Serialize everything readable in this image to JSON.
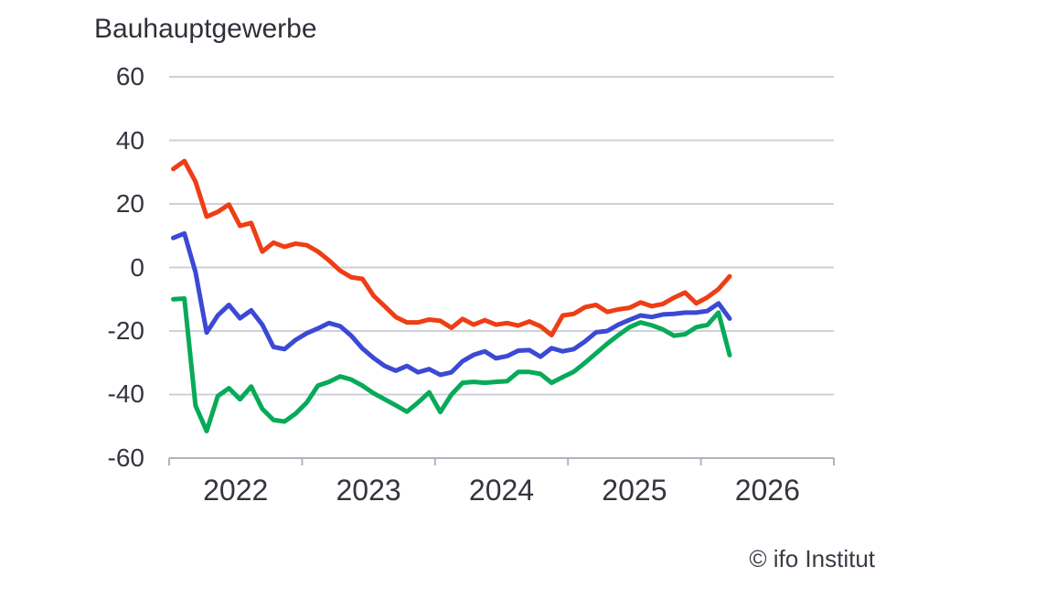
{
  "page": {
    "background": "#ffffff"
  },
  "chart": {
    "title": "Bauhauptgewerbe",
    "attribution": "© ifo Institut"
  },
  "chart_data": {
    "type": "line",
    "title": "Bauhauptgewerbe",
    "grid": "horizontal",
    "legend": "none",
    "text_color": "#33363d",
    "grid_color": "#ced1d9",
    "axis_color": "#b0b4bf",
    "ylim": [
      -60,
      60
    ],
    "y_ticks": [
      60,
      40,
      20,
      0,
      -20,
      -40,
      -60
    ],
    "x_tick_labels": [
      "2022",
      "2023",
      "2024",
      "2025",
      "2026"
    ],
    "x": [
      "2021-07",
      "2021-08",
      "2021-09",
      "2021-10",
      "2021-11",
      "2021-12",
      "2022-01",
      "2022-02",
      "2022-03",
      "2022-04",
      "2022-05",
      "2022-06",
      "2022-07",
      "2022-08",
      "2022-09",
      "2022-10",
      "2022-11",
      "2022-12",
      "2023-01",
      "2023-02",
      "2023-03",
      "2023-04",
      "2023-05",
      "2023-06",
      "2023-07",
      "2023-08",
      "2023-09",
      "2023-10",
      "2023-11",
      "2023-12",
      "2024-01",
      "2024-02",
      "2024-03",
      "2024-04",
      "2024-05",
      "2024-06",
      "2024-07",
      "2024-08",
      "2024-09",
      "2024-10",
      "2024-11",
      "2024-12",
      "2025-01",
      "2025-02",
      "2025-03",
      "2025-04",
      "2025-05",
      "2025-06",
      "2025-07",
      "2025-08",
      "2025-09"
    ],
    "series": [
      {
        "name": "orange",
        "color": "#ee3e16",
        "values": [
          31,
          33.5,
          27,
          16,
          17.5,
          19.8,
          13.1,
          14,
          5,
          7.8,
          6.5,
          7.5,
          7,
          5,
          2.2,
          -1,
          -3.1,
          -3.6,
          -8.9,
          -12.2,
          -15.6,
          -17.3,
          -17.3,
          -16.4,
          -16.8,
          -19,
          -16.2,
          -18,
          -16.6,
          -18,
          -17.5,
          -18.3,
          -17,
          -18.5,
          -21.3,
          -15.1,
          -14.6,
          -12.5,
          -11.8,
          -14,
          -13.2,
          -12.7,
          -11,
          -12.2,
          -11.5,
          -9.5,
          -7.9,
          -11.3,
          -9.4,
          -6.8,
          -2.8
        ]
      },
      {
        "name": "blue",
        "color": "#3c49d4",
        "values": [
          9.3,
          10.7,
          -1.5,
          -20.5,
          -15.1,
          -11.8,
          -16,
          -13.5,
          -18,
          -25,
          -25.7,
          -22.8,
          -20.7,
          -19.2,
          -17.5,
          -18.5,
          -21.5,
          -25.5,
          -28.5,
          -31,
          -32.5,
          -31,
          -33,
          -32,
          -33.8,
          -33,
          -29.5,
          -27.5,
          -26.4,
          -28.6,
          -27.9,
          -26.2,
          -26,
          -28.1,
          -25.4,
          -26.4,
          -25.7,
          -23.3,
          -20.4,
          -20,
          -18,
          -16.5,
          -15.1,
          -15.6,
          -14.8,
          -14.6,
          -14.2,
          -14.2,
          -13.7,
          -11.3,
          -16.1
        ]
      },
      {
        "name": "green",
        "color": "#07aa58",
        "values": [
          -10,
          -9.8,
          -43.5,
          -51.5,
          -40.5,
          -38,
          -41.5,
          -37.5,
          -44.5,
          -48,
          -48.5,
          -46,
          -42.5,
          -37.2,
          -36,
          -34.3,
          -35.3,
          -37.2,
          -39.6,
          -41.5,
          -43.4,
          -45.4,
          -42.5,
          -39.3,
          -45.5,
          -40,
          -36.3,
          -36,
          -36.3,
          -36,
          -35.8,
          -32.9,
          -32.9,
          -33.5,
          -36.3,
          -34.5,
          -32.8,
          -30,
          -27,
          -24,
          -21.3,
          -18.8,
          -17.3,
          -18.2,
          -19.5,
          -21.5,
          -21,
          -18.8,
          -18.1,
          -14.2,
          -27.6
        ]
      }
    ]
  }
}
